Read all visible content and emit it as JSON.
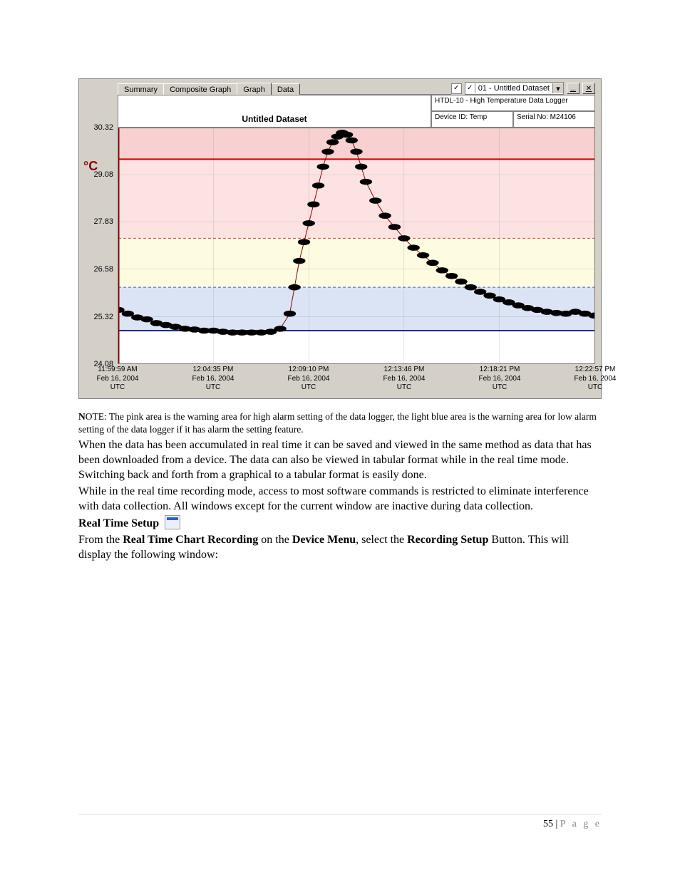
{
  "page": {
    "number": "55",
    "separator": " | ",
    "label": "P a g e"
  },
  "app": {
    "tabs": [
      "Summary",
      "Composite Graph",
      "Graph",
      "Data"
    ],
    "active_tab_index": 2,
    "checkbox1_checked": true,
    "checkbox2_checked": true,
    "dropdown_value": "01 - Untitled Dataset",
    "title": "Untitled Dataset",
    "device_line": "HTDL-10 - High Temperature Data Logger",
    "device_id_label": "Device ID: Temp",
    "serial_label": "Serial No: M24106",
    "y_unit": "°C",
    "y_ticks": [
      30.32,
      29.08,
      27.83,
      26.58,
      25.32,
      24.08
    ],
    "x_ticks": [
      {
        "time": "11:59:59 AM",
        "date": "Feb 16, 2004",
        "tz": "UTC"
      },
      {
        "time": "12:04:35 PM",
        "date": "Feb 16, 2004",
        "tz": "UTC"
      },
      {
        "time": "12:09:10 PM",
        "date": "Feb 16, 2004",
        "tz": "UTC"
      },
      {
        "time": "12:13:46 PM",
        "date": "Feb 16, 2004",
        "tz": "UTC"
      },
      {
        "time": "12:18:21 PM",
        "date": "Feb 16, 2004",
        "tz": "UTC"
      },
      {
        "time": "12:22:57 PM",
        "date": "Feb 16, 2004",
        "tz": "UTC"
      }
    ],
    "chart": {
      "type": "line",
      "y_domain": [
        24.08,
        30.32
      ],
      "x_domain": [
        0,
        100
      ],
      "bands": [
        {
          "from": 29.5,
          "to": 30.32,
          "fill": "#f8d0d0"
        },
        {
          "from": 27.4,
          "to": 29.5,
          "fill": "#fde2e2"
        },
        {
          "from": 26.1,
          "to": 27.4,
          "fill": "#fdfbe0"
        },
        {
          "from": 24.95,
          "to": 26.1,
          "fill": "#dbe4f4"
        },
        {
          "from": 24.08,
          "to": 24.95,
          "fill": "#ffffff"
        }
      ],
      "boundary_lines": [
        {
          "y": 29.5,
          "stroke": "#cc0000",
          "dash": "0",
          "width": 2
        },
        {
          "y": 27.4,
          "stroke": "#cc4444",
          "dash": "4,3",
          "width": 1
        },
        {
          "y": 26.1,
          "stroke": "#4466aa",
          "dash": "4,3",
          "width": 1
        },
        {
          "y": 24.95,
          "stroke": "#1a2a88",
          "dash": "0",
          "width": 2
        }
      ],
      "grid_color": "#808080",
      "grid_y": [
        30.32,
        29.08,
        27.83,
        26.58,
        25.32,
        24.08
      ],
      "grid_x": [
        0,
        20,
        40,
        60,
        80,
        100
      ],
      "line_stroke": "#8b0000",
      "marker_fill": "#000000",
      "marker_radius": 1.3,
      "data": [
        [
          0,
          25.5
        ],
        [
          2,
          25.4
        ],
        [
          4,
          25.3
        ],
        [
          6,
          25.25
        ],
        [
          8,
          25.15
        ],
        [
          10,
          25.1
        ],
        [
          12,
          25.05
        ],
        [
          14,
          25.0
        ],
        [
          16,
          24.98
        ],
        [
          18,
          24.95
        ],
        [
          20,
          24.95
        ],
        [
          22,
          24.92
        ],
        [
          24,
          24.9
        ],
        [
          26,
          24.9
        ],
        [
          28,
          24.9
        ],
        [
          30,
          24.9
        ],
        [
          32,
          24.92
        ],
        [
          34,
          25.0
        ],
        [
          36,
          25.4
        ],
        [
          37,
          26.1
        ],
        [
          38,
          26.8
        ],
        [
          39,
          27.3
        ],
        [
          40,
          27.8
        ],
        [
          41,
          28.3
        ],
        [
          42,
          28.8
        ],
        [
          43,
          29.3
        ],
        [
          44,
          29.7
        ],
        [
          45,
          29.95
        ],
        [
          46,
          30.1
        ],
        [
          47,
          30.2
        ],
        [
          48,
          30.15
        ],
        [
          49,
          30.0
        ],
        [
          50,
          29.7
        ],
        [
          51,
          29.3
        ],
        [
          52,
          28.9
        ],
        [
          54,
          28.4
        ],
        [
          56,
          28.0
        ],
        [
          58,
          27.7
        ],
        [
          60,
          27.4
        ],
        [
          62,
          27.15
        ],
        [
          64,
          26.95
        ],
        [
          66,
          26.75
        ],
        [
          68,
          26.55
        ],
        [
          70,
          26.4
        ],
        [
          72,
          26.25
        ],
        [
          74,
          26.1
        ],
        [
          76,
          25.98
        ],
        [
          78,
          25.88
        ],
        [
          80,
          25.78
        ],
        [
          82,
          25.7
        ],
        [
          84,
          25.62
        ],
        [
          86,
          25.55
        ],
        [
          88,
          25.5
        ],
        [
          90,
          25.45
        ],
        [
          92,
          25.42
        ],
        [
          94,
          25.4
        ],
        [
          96,
          25.45
        ],
        [
          98,
          25.4
        ],
        [
          100,
          25.35
        ]
      ]
    }
  },
  "text": {
    "note_lead": "N",
    "note_rest": "OTE: The pink area is the warning area for high alarm setting of the data logger, the light blue area is the warning area for low alarm setting of the data logger if it has alarm the setting feature.",
    "para1": "When the data has been accumulated in real time it can be saved and viewed in the same method as data that has been downloaded from a device. The data can also be viewed in tabular format while in the real time mode. Switching back and forth from a graphical to a tabular format is easily done.",
    "para2": "While in the real time recording mode, access to most software commands is restricted to eliminate interference with data collection. All windows except for the current window are inactive during data collection.",
    "rts_heading": "Real Time Setup",
    "para3_a": "From the ",
    "para3_b": "Real Time Chart Recording",
    "para3_c": " on the ",
    "para3_d": "Device Menu",
    "para3_e": ", select the ",
    "para3_f": "Recording Setup",
    "para3_g": " Button. This will display the following window:"
  }
}
